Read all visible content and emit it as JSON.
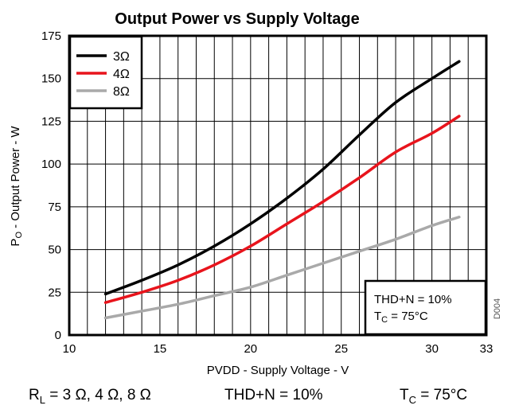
{
  "chart_data": {
    "type": "line",
    "title": "Output Power vs Supply Voltage",
    "xlabel": "PVDD - Supply Voltage - V",
    "ylabel_main": "P",
    "ylabel_sub": "O",
    "ylabel_rest": " - Output Power - W",
    "xlim": [
      10,
      33
    ],
    "ylim": [
      0,
      175
    ],
    "xticks": [
      10,
      15,
      20,
      25,
      30,
      33
    ],
    "yticks": [
      0,
      25,
      50,
      75,
      100,
      125,
      150,
      175
    ],
    "x_grid": [
      10,
      11,
      12,
      13,
      14,
      15,
      16,
      17,
      18,
      19,
      20,
      21,
      22,
      23,
      24,
      25,
      26,
      27,
      28,
      29,
      30,
      31,
      32,
      33
    ],
    "y_grid": [
      0,
      25,
      50,
      75,
      100,
      125,
      150,
      175
    ],
    "grid": true,
    "legend_position": "top-left",
    "series": [
      {
        "name": "3Ω",
        "color": "#000000",
        "x": [
          12,
          14,
          16,
          18,
          20,
          22,
          24,
          26,
          28,
          30,
          31.5
        ],
        "y": [
          24,
          32,
          41,
          52,
          65,
          80,
          97,
          117,
          136,
          150,
          160
        ]
      },
      {
        "name": "4Ω",
        "color": "#e8141c",
        "x": [
          12,
          14,
          16,
          18,
          20,
          22,
          24,
          26,
          28,
          30,
          31.5
        ],
        "y": [
          19,
          25,
          32,
          41,
          52,
          65,
          78,
          92,
          107,
          118,
          128
        ]
      },
      {
        "name": "8Ω",
        "color": "#a9a9a9",
        "x": [
          12,
          14,
          16,
          18,
          20,
          22,
          24,
          26,
          28,
          30,
          31.5
        ],
        "y": [
          10,
          14,
          18,
          23,
          28,
          35,
          42,
          49,
          56,
          64,
          69
        ]
      }
    ],
    "annotation": {
      "line1": "THD+N = 10%",
      "line2_prefix": "T",
      "line2_sub": "C",
      "line2_rest": " = 75°C"
    },
    "side_code": "D004"
  },
  "footer": {
    "rl_main": "R",
    "rl_sub": "L",
    "rl_rest": " = 3 Ω, 4 Ω, 8 Ω",
    "thd": "THD+N = 10%",
    "tc_main": "T",
    "tc_sub": "C",
    "tc_rest": " = 75°C"
  }
}
